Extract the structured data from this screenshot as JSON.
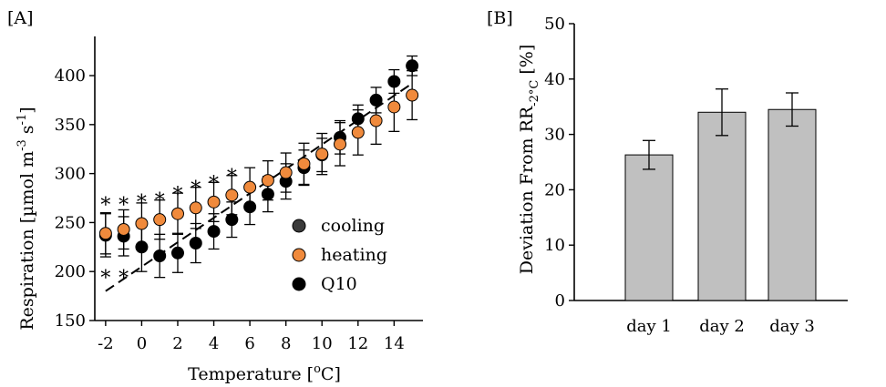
{
  "chart_data": [
    {
      "type": "scatter",
      "panel_label": "[A]",
      "xlabel_text": "Temperature [",
      "xlabel_sup": "o",
      "xlabel_unit": "C]",
      "ylabel_text": "Respiration [µmol m",
      "ylabel_sup1": "-3",
      "ylabel_mid": " s",
      "ylabel_sup2": "-1",
      "ylabel_end": "]",
      "xlim": [
        -2.6,
        15.6
      ],
      "ylim": [
        150,
        440
      ],
      "xticks": [
        -2,
        0,
        2,
        4,
        6,
        8,
        10,
        12,
        14
      ],
      "yticks": [
        150,
        200,
        250,
        300,
        350,
        400
      ],
      "legend_position": "right-center",
      "colors": {
        "cooling": "#3a3a3a",
        "heating": "#f08a3c",
        "q10": "#000000"
      },
      "series": [
        {
          "name": "cooling",
          "x": [
            -2,
            -1,
            0,
            1,
            2,
            3,
            4,
            5,
            6,
            7,
            8,
            9,
            10,
            11,
            12,
            13,
            14,
            15
          ],
          "y": [
            237,
            236,
            225,
            216,
            219,
            229,
            241,
            253,
            266,
            279,
            292,
            306,
            319,
            337,
            356,
            375,
            394,
            410
          ],
          "err": [
            22,
            20,
            25,
            22,
            20,
            20,
            18,
            18,
            18,
            18,
            18,
            18,
            17,
            17,
            14,
            13,
            12,
            10
          ]
        },
        {
          "name": "heating",
          "x": [
            -2,
            -1,
            0,
            1,
            2,
            3,
            4,
            5,
            6,
            7,
            8,
            9,
            10,
            11,
            12,
            13,
            14,
            15
          ],
          "y": [
            239,
            243,
            249,
            253,
            259,
            265,
            271,
            278,
            286,
            293,
            301,
            310,
            320,
            330,
            342,
            354,
            368,
            380
          ],
          "err": [
            21,
            20,
            21,
            20,
            21,
            21,
            20,
            20,
            20,
            20,
            20,
            21,
            21,
            22,
            23,
            24,
            25,
            25
          ]
        },
        {
          "name": "Q10",
          "line_x": [
            -2,
            15
          ],
          "line_y": [
            180,
            392
          ]
        }
      ],
      "annotations": [
        {
          "text": "*",
          "x": -2,
          "y": 272
        },
        {
          "text": "*",
          "x": -1,
          "y": 272
        },
        {
          "text": "*",
          "x": 0,
          "y": 275
        },
        {
          "text": "*",
          "x": 1,
          "y": 277
        },
        {
          "text": "*",
          "x": 2,
          "y": 283
        },
        {
          "text": "*",
          "x": 3,
          "y": 289
        },
        {
          "text": "*",
          "x": 4,
          "y": 294
        },
        {
          "text": "*",
          "x": 5,
          "y": 301
        },
        {
          "text": "*",
          "x": -2,
          "y": 198
        },
        {
          "text": "*",
          "x": -1,
          "y": 198
        }
      ]
    },
    {
      "type": "bar",
      "panel_label": "[B]",
      "ylabel_text": "Deviation From RR",
      "ylabel_sub": "-2°C",
      "ylabel_end": " [%]",
      "categories": [
        "day 1",
        "day 2",
        "day 3"
      ],
      "values": [
        26.3,
        34.0,
        34.5
      ],
      "err": [
        2.6,
        4.2,
        3.0
      ],
      "ylim": [
        0,
        50
      ],
      "yticks": [
        0,
        10,
        20,
        30,
        40,
        50
      ],
      "bar_color": "#c0c0c0"
    }
  ]
}
